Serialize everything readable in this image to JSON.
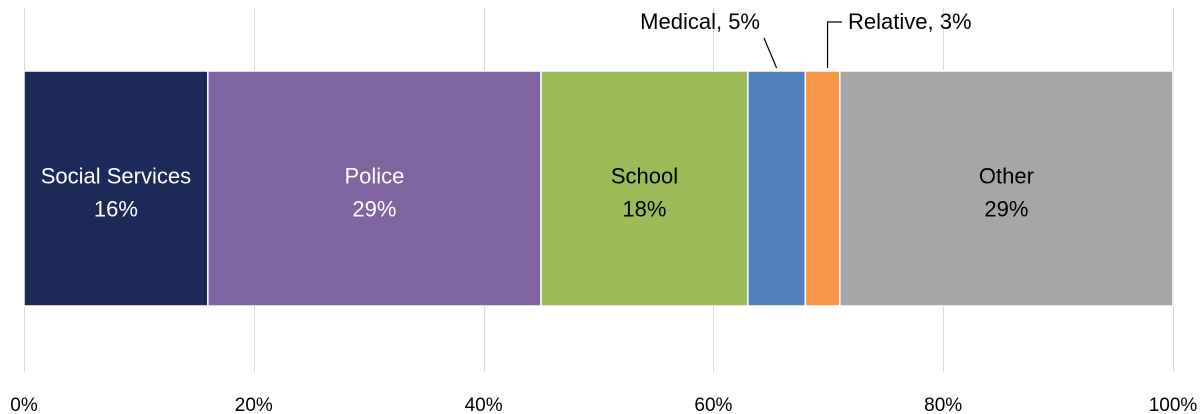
{
  "chart_data": {
    "type": "bar",
    "orientation": "horizontal",
    "stacked": true,
    "title": "",
    "xlabel": "",
    "ylabel": "",
    "xlim": [
      0,
      100
    ],
    "x_ticks": [
      0,
      20,
      40,
      60,
      80,
      100
    ],
    "x_tick_labels": [
      "0%",
      "20%",
      "40%",
      "60%",
      "80%",
      "100%"
    ],
    "grid": true,
    "legend": "none",
    "series": [
      {
        "name": "Social Services",
        "value": 16,
        "display_value": "16%",
        "color": "#1c2a5a",
        "label_text": "Social Services",
        "label_color": "#ffffff",
        "label_placement": "inside"
      },
      {
        "name": "Police",
        "value": 29,
        "display_value": "29%",
        "color": "#8064a2",
        "label_text": "Police",
        "label_color": "#ffffff",
        "label_placement": "inside"
      },
      {
        "name": "School",
        "value": 18,
        "display_value": "18%",
        "color": "#9bbb59",
        "label_text": "School",
        "label_color": "#000000",
        "label_placement": "inside"
      },
      {
        "name": "Medical",
        "value": 5,
        "display_value": "5%",
        "color": "#4f81bd",
        "label_text": "Medical, 5%",
        "label_color": "#000000",
        "label_placement": "callout"
      },
      {
        "name": "Relative",
        "value": 3,
        "display_value": "3%",
        "color": "#f79646",
        "label_text": "Relative, 3%",
        "label_color": "#000000",
        "label_placement": "callout"
      },
      {
        "name": "Other",
        "value": 29,
        "display_value": "29%",
        "color": "#a6a6a6",
        "label_text": "Other",
        "label_color": "#000000",
        "label_placement": "inside"
      }
    ]
  }
}
